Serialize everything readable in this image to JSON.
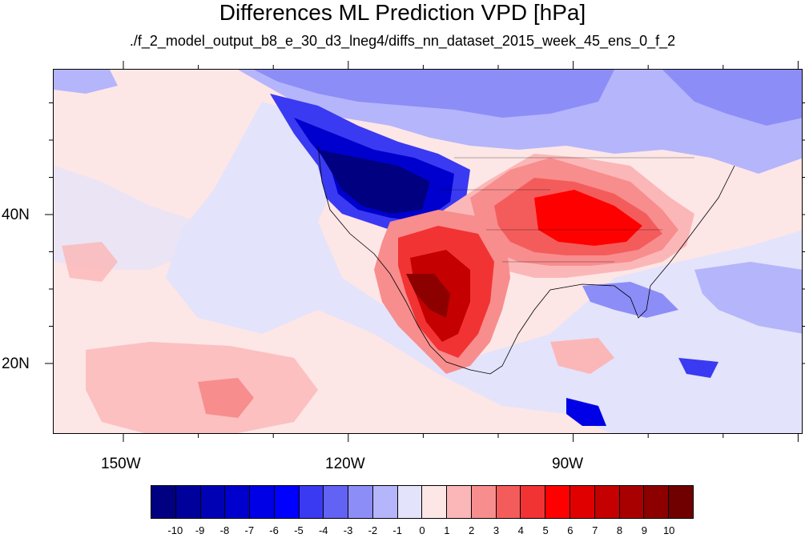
{
  "title": "Differences ML Prediction VPD [hPa]",
  "subtitle": "./f_2_model_output_b8_e_30_d3_lneg4/diffs_nn_dataset_2015_week_45_ens_0_f_2",
  "axes": {
    "lon_labels": [
      "150W",
      "120W",
      "90W"
    ],
    "lat_labels": [
      "40N",
      "20N"
    ]
  },
  "colorbar": {
    "labels": [
      "-10",
      "-9",
      "-8",
      "-7",
      "-6",
      "-5",
      "-4",
      "-3",
      "-2",
      "-1",
      "0",
      "1",
      "2",
      "3",
      "4",
      "5",
      "6",
      "7",
      "8",
      "9",
      "10"
    ],
    "colors": [
      "#000080",
      "#00009a",
      "#0000b4",
      "#0000ce",
      "#0000e6",
      "#0000ff",
      "#3a3af2",
      "#6262f5",
      "#8d8df7",
      "#b5b5fb",
      "#e3e3fb",
      "#fde6e6",
      "#fbb7b7",
      "#f88d8d",
      "#f45c5c",
      "#f23333",
      "#ff0000",
      "#e00000",
      "#c40000",
      "#a80000",
      "#8c0000",
      "#700000"
    ]
  }
}
